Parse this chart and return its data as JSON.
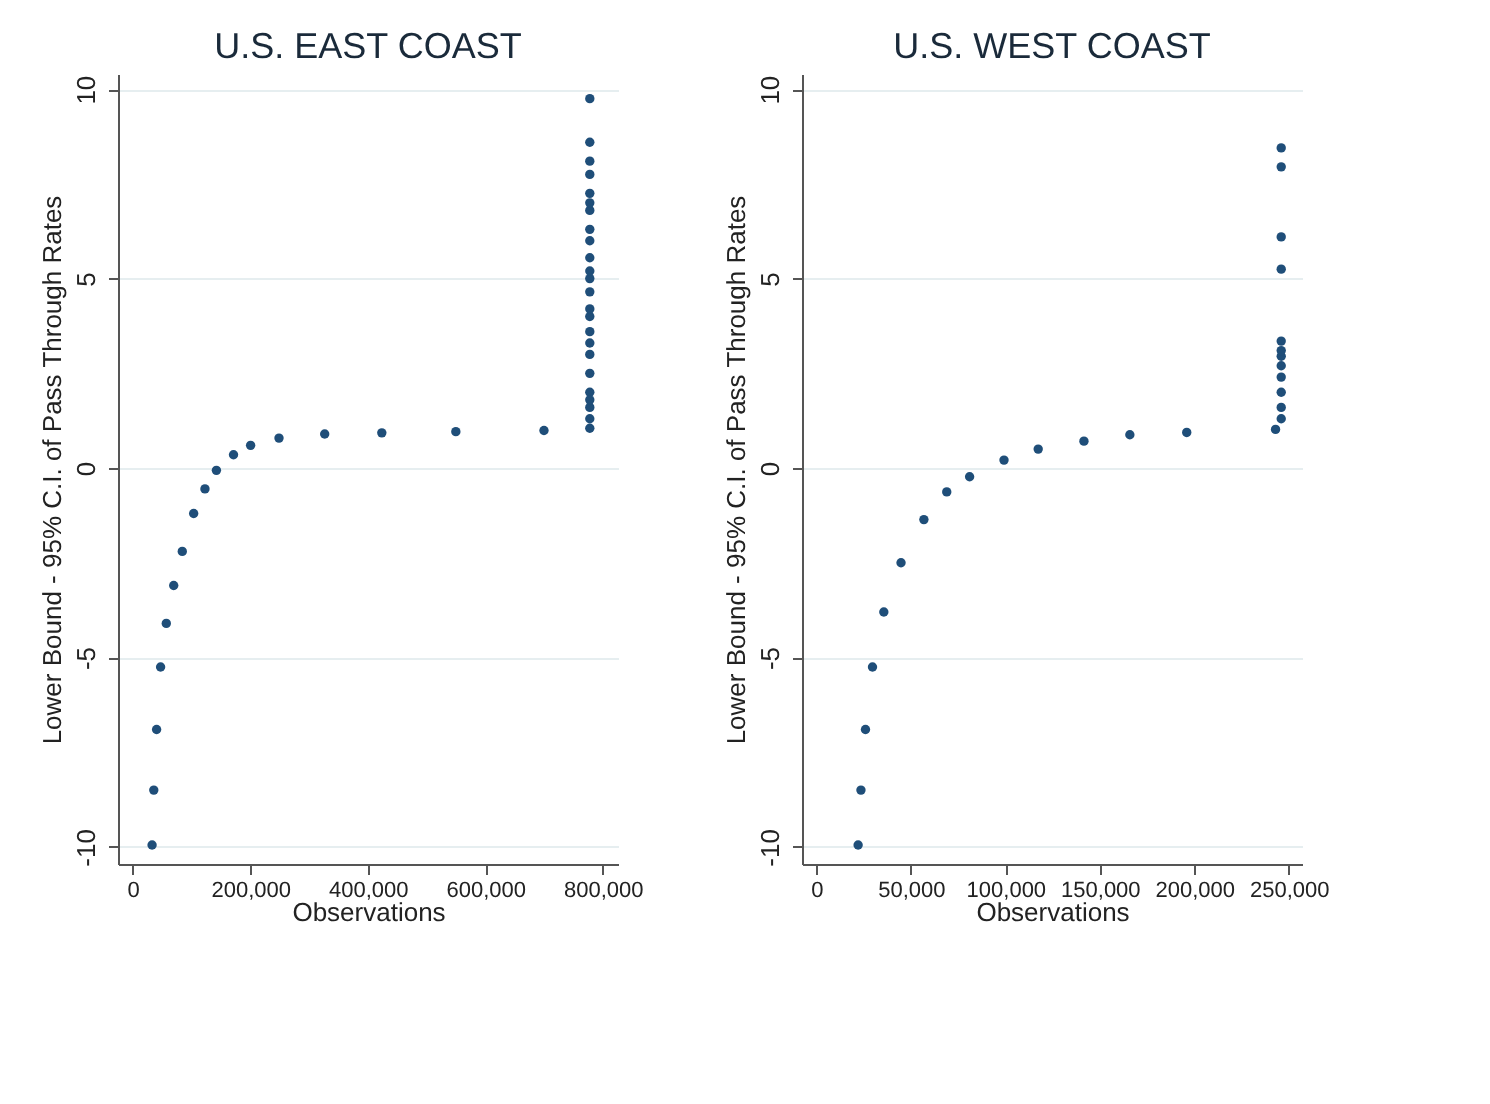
{
  "chart_data": [
    {
      "type": "scatter",
      "title": "U.S. EAST COAST",
      "xlabel": "Observations",
      "ylabel": "Lower Bound - 95% C.I. of Pass Through Rates",
      "color": "#1f4e79",
      "marker": "circle",
      "grid": "y",
      "x": [
        33000,
        35900,
        40700,
        47500,
        57200,
        69800,
        84400,
        103800,
        123000,
        142500,
        171600,
        200700,
        249000,
        326800,
        424000,
        550000,
        700000,
        778000,
        778000,
        778000,
        778000,
        778000,
        778000,
        778000,
        778000,
        778000,
        778000,
        778000,
        778000,
        778000,
        778000,
        778000,
        778000,
        778000,
        778000,
        778000,
        778000,
        778000,
        778000,
        778000,
        778000
      ],
      "values": [
        -9.95,
        -8.5,
        -6.9,
        -5.25,
        -4.1,
        -3.1,
        -2.2,
        -1.2,
        -0.55,
        -0.06,
        0.35,
        0.6,
        0.79,
        0.9,
        0.93,
        0.96,
        0.99,
        1.05,
        1.3,
        1.6,
        2.0,
        2.5,
        3.0,
        3.3,
        3.6,
        4.0,
        4.2,
        4.65,
        5.0,
        5.2,
        5.55,
        6.0,
        6.3,
        6.8,
        7.0,
        7.25,
        7.75,
        8.1,
        8.6,
        9.75,
        1.8
      ],
      "xlim": [
        -25000,
        826000
      ],
      "ylim": [
        -10.45,
        10.4
      ],
      "xticks": [
        0,
        {
          "value": 200000,
          "label": "200,000"
        },
        {
          "value": 400000,
          "label": "400,000"
        },
        {
          "value": 600000,
          "label": "600,000"
        },
        {
          "value": 800000,
          "label": "800,000"
        }
      ],
      "yticks": [
        -10,
        -5,
        0,
        5,
        10
      ]
    },
    {
      "type": "scatter",
      "title": "U.S. WEST COAST",
      "xlabel": "Observations",
      "ylabel": "Lower Bound - 95% C.I. of Pass Through Rates",
      "color": "#1f4e79",
      "marker": "circle",
      "grid": "y",
      "x": [
        22100,
        23600,
        26000,
        29700,
        35700,
        44800,
        56900,
        69000,
        81100,
        99300,
        117400,
        141600,
        165900,
        196000,
        243000,
        246000,
        246000,
        246000,
        246000,
        246000,
        246000,
        246000,
        246000,
        246000,
        246000,
        246000,
        246000
      ],
      "values": [
        -9.95,
        -8.5,
        -6.9,
        -5.25,
        -3.8,
        -2.5,
        -1.36,
        -0.63,
        -0.23,
        0.21,
        0.5,
        0.71,
        0.88,
        0.94,
        1.02,
        1.3,
        1.6,
        2.0,
        2.4,
        2.7,
        2.95,
        3.1,
        3.35,
        5.25,
        6.1,
        7.95,
        8.45
      ],
      "xlim": [
        -7600,
        257000
      ],
      "ylim": [
        -10.45,
        10.4
      ],
      "xticks": [
        0,
        {
          "value": 50000,
          "label": "50,000"
        },
        {
          "value": 100000,
          "label": "100,000"
        },
        {
          "value": 150000,
          "label": "150,000"
        },
        {
          "value": 200000,
          "label": "200,000"
        },
        {
          "value": 250000,
          "label": "250,000"
        }
      ],
      "yticks": [
        -10,
        -5,
        0,
        5,
        10
      ]
    }
  ]
}
